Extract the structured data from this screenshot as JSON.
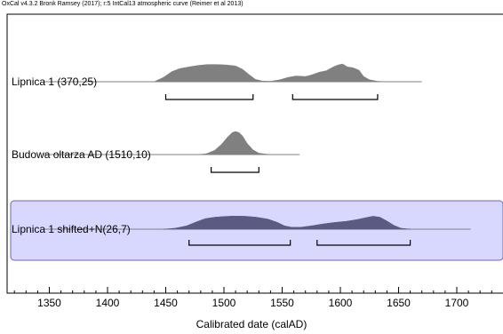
{
  "header": "OxCal v4.3.2 Bronk Ramsey (2017); r:5 IntCal13 atmospheric curve (Reimer et al 2013)",
  "chart_data": {
    "type": "area",
    "title": "",
    "xlabel": "Calibrated date (calAD)",
    "ylabel": "",
    "xlim": [
      1310,
      1740
    ],
    "x_ticks": [
      1350,
      1400,
      1450,
      1500,
      1550,
      1600,
      1650,
      1700
    ],
    "grid": false,
    "series": [
      {
        "name": "Lipnica 1 (370,25)",
        "color": "#808080",
        "line_range": [
          1345,
          1670
        ],
        "highlighted": false,
        "prob_x": [
          1440,
          1448,
          1455,
          1462,
          1470,
          1478,
          1486,
          1494,
          1502,
          1510,
          1516,
          1522,
          1527,
          1533,
          1540,
          1548,
          1555,
          1562,
          1570,
          1575,
          1582,
          1588,
          1594,
          1598,
          1602,
          1606,
          1611,
          1616,
          1620,
          1625,
          1632,
          1640
        ],
        "prob_y": [
          0,
          0.18,
          0.42,
          0.55,
          0.62,
          0.68,
          0.72,
          0.72,
          0.7,
          0.66,
          0.52,
          0.28,
          0.1,
          0.03,
          0.02,
          0.08,
          0.18,
          0.24,
          0.22,
          0.28,
          0.4,
          0.46,
          0.62,
          0.7,
          0.74,
          0.62,
          0.58,
          0.48,
          0.22,
          0.08,
          0.02,
          0
        ],
        "ranges": [
          [
            1450,
            1525
          ],
          [
            1559,
            1632
          ]
        ]
      },
      {
        "name": "Budowa oltarza AD (1510,10)",
        "color": "#808080",
        "line_range": [
          1345,
          1565
        ],
        "highlighted": false,
        "prob_x": [
          1478,
          1485,
          1492,
          1498,
          1503,
          1507,
          1510,
          1513,
          1516,
          1520,
          1525,
          1530,
          1536,
          1542
        ],
        "prob_y": [
          0,
          0.04,
          0.18,
          0.45,
          0.75,
          0.95,
          1.0,
          0.95,
          0.8,
          0.48,
          0.2,
          0.06,
          0.02,
          0
        ],
        "ranges": [
          [
            1489,
            1530
          ]
        ]
      },
      {
        "name": "Lipnica 1 shifted+N(26,7)",
        "color": "#5a5a82",
        "line_range": [
          1345,
          1712
        ],
        "highlighted": true,
        "prob_x": [
          1448,
          1458,
          1468,
          1476,
          1484,
          1492,
          1500,
          1508,
          1518,
          1528,
          1538,
          1546,
          1552,
          1558,
          1566,
          1575,
          1585,
          1595,
          1605,
          1614,
          1622,
          1628,
          1634,
          1640,
          1646,
          1652,
          1660
        ],
        "prob_y": [
          0,
          0.04,
          0.14,
          0.3,
          0.44,
          0.5,
          0.53,
          0.55,
          0.54,
          0.5,
          0.42,
          0.28,
          0.14,
          0.08,
          0.08,
          0.14,
          0.22,
          0.28,
          0.33,
          0.4,
          0.48,
          0.54,
          0.5,
          0.34,
          0.16,
          0.04,
          0
        ],
        "ranges": [
          [
            1470,
            1557
          ],
          [
            1580,
            1660
          ]
        ]
      }
    ]
  }
}
